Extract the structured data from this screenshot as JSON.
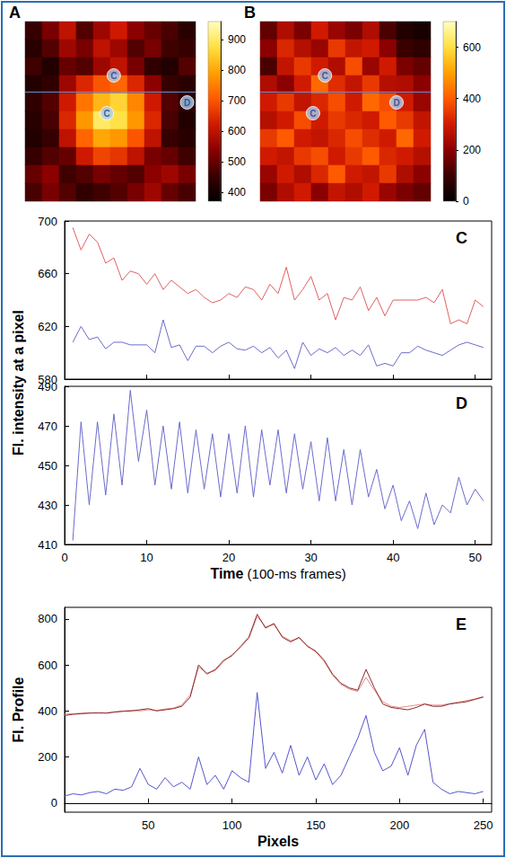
{
  "chart_data": [
    {
      "type": "heatmap",
      "panel": "A",
      "cells": [
        [
          450,
          520,
          600,
          480,
          560,
          620,
          540,
          500,
          470,
          430
        ],
        [
          430,
          480,
          560,
          520,
          600,
          560,
          480,
          520,
          460,
          450
        ],
        [
          460,
          420,
          500,
          480,
          560,
          600,
          520,
          440,
          420,
          480
        ],
        [
          420,
          440,
          560,
          640,
          700,
          720,
          640,
          540,
          450,
          430
        ],
        [
          440,
          480,
          620,
          740,
          820,
          860,
          760,
          620,
          480,
          440
        ],
        [
          430,
          470,
          640,
          780,
          900,
          880,
          780,
          640,
          470,
          420
        ],
        [
          420,
          450,
          600,
          720,
          800,
          780,
          700,
          600,
          450,
          430
        ],
        [
          450,
          480,
          500,
          620,
          680,
          660,
          600,
          520,
          500,
          460
        ],
        [
          500,
          540,
          460,
          480,
          520,
          500,
          480,
          540,
          560,
          520
        ],
        [
          470,
          520,
          480,
          440,
          460,
          480,
          520,
          560,
          500,
          470
        ]
      ],
      "colorbar": {
        "range": [
          370,
          960
        ],
        "ticks": [
          400,
          500,
          600,
          700,
          800,
          900
        ]
      },
      "hline_y": 3.9,
      "markers": [
        {
          "label": "C",
          "x": 5.2,
          "y": 3.0
        },
        {
          "label": "C",
          "x": 4.8,
          "y": 5.1
        },
        {
          "label": "D",
          "x": 9.5,
          "y": 4.5
        }
      ]
    },
    {
      "type": "heatmap",
      "panel": "B",
      "cells": [
        [
          150,
          250,
          180,
          300,
          220,
          180,
          250,
          120,
          60,
          40
        ],
        [
          200,
          320,
          260,
          220,
          350,
          280,
          300,
          200,
          100,
          80
        ],
        [
          120,
          280,
          350,
          300,
          250,
          380,
          220,
          300,
          180,
          150
        ],
        [
          250,
          200,
          300,
          420,
          330,
          280,
          350,
          260,
          250,
          200
        ],
        [
          300,
          350,
          280,
          320,
          380,
          300,
          420,
          380,
          300,
          220
        ],
        [
          260,
          300,
          380,
          300,
          350,
          320,
          300,
          400,
          350,
          280
        ],
        [
          350,
          400,
          300,
          280,
          320,
          380,
          330,
          300,
          420,
          300
        ],
        [
          300,
          280,
          350,
          380,
          300,
          350,
          400,
          320,
          300,
          260
        ],
        [
          220,
          300,
          250,
          320,
          400,
          300,
          280,
          350,
          250,
          200
        ],
        [
          180,
          250,
          300,
          200,
          280,
          250,
          300,
          220,
          180,
          150
        ]
      ],
      "colorbar": {
        "range": [
          0,
          700
        ],
        "ticks": [
          0,
          200,
          400,
          600
        ]
      },
      "hline_y": 3.9,
      "markers": [
        {
          "label": "C",
          "x": 3.8,
          "y": 3.0
        },
        {
          "label": "C",
          "x": 3.1,
          "y": 5.1
        },
        {
          "label": "D",
          "x": 8.0,
          "y": 4.5
        }
      ]
    },
    {
      "type": "line",
      "panel": "C",
      "y_label": "Fl. intensity at a pixel",
      "x": [
        1,
        2,
        3,
        4,
        5,
        6,
        7,
        8,
        9,
        10,
        11,
        12,
        13,
        14,
        15,
        16,
        17,
        18,
        19,
        20,
        21,
        22,
        23,
        24,
        25,
        26,
        27,
        28,
        29,
        30,
        31,
        32,
        33,
        34,
        35,
        36,
        37,
        38,
        39,
        40,
        41,
        42,
        43,
        44,
        45,
        46,
        47,
        48,
        49,
        50,
        51
      ],
      "series": [
        {
          "color": "#e06060",
          "values": [
            695,
            678,
            690,
            684,
            668,
            672,
            655,
            662,
            660,
            652,
            660,
            648,
            655,
            650,
            645,
            648,
            642,
            638,
            640,
            645,
            642,
            650,
            648,
            640,
            652,
            645,
            665,
            640,
            648,
            658,
            640,
            645,
            625,
            642,
            640,
            650,
            632,
            642,
            628,
            640,
            640,
            640,
            640,
            642,
            638,
            648,
            622,
            625,
            622,
            640,
            635
          ]
        },
        {
          "color": "#6b6bcc",
          "values": [
            608,
            620,
            610,
            612,
            603,
            608,
            608,
            606,
            606,
            606,
            600,
            625,
            604,
            606,
            594,
            605,
            605,
            600,
            605,
            608,
            603,
            602,
            605,
            600,
            604,
            596,
            602,
            588,
            608,
            598,
            603,
            600,
            604,
            598,
            602,
            598,
            606,
            590,
            592,
            590,
            600,
            600,
            605,
            602,
            600,
            598,
            602,
            606,
            608,
            606,
            604
          ]
        }
      ],
      "xlim": [
        0,
        52
      ],
      "xticks": [
        0,
        10,
        20,
        30,
        40,
        50
      ],
      "ylim": [
        580,
        700
      ],
      "yticks": [
        580,
        620,
        660,
        700
      ],
      "tick_labels": "y",
      "grid": false
    },
    {
      "type": "line",
      "panel": "D",
      "x_label": "Time (100-ms frames)",
      "x": [
        1,
        2,
        3,
        4,
        5,
        6,
        7,
        8,
        9,
        10,
        11,
        12,
        13,
        14,
        15,
        16,
        17,
        18,
        19,
        20,
        21,
        22,
        23,
        24,
        25,
        26,
        27,
        28,
        29,
        30,
        31,
        32,
        33,
        34,
        35,
        36,
        37,
        38,
        39,
        40,
        41,
        42,
        43,
        44,
        45,
        46,
        47,
        48,
        49,
        50,
        51
      ],
      "series": [
        {
          "color": "#6b6bcc",
          "values": [
            412,
            472,
            430,
            472,
            435,
            476,
            440,
            488,
            452,
            478,
            440,
            470,
            438,
            472,
            436,
            468,
            438,
            466,
            434,
            466,
            436,
            470,
            434,
            468,
            440,
            468,
            436,
            466,
            438,
            462,
            432,
            464,
            432,
            458,
            430,
            458,
            434,
            448,
            428,
            440,
            422,
            432,
            418,
            436,
            420,
            430,
            426,
            444,
            430,
            438,
            432
          ]
        }
      ],
      "xlim": [
        0,
        52
      ],
      "xticks": [
        0,
        10,
        20,
        30,
        40,
        50
      ],
      "ylim": [
        410,
        490
      ],
      "yticks": [
        410,
        430,
        450,
        470,
        490
      ],
      "grid": false
    },
    {
      "type": "line",
      "panel": "E",
      "x_label": "Pixels",
      "y_label": "Fl. Profile",
      "x": [
        0,
        5,
        10,
        15,
        20,
        25,
        30,
        35,
        40,
        45,
        50,
        55,
        60,
        65,
        70,
        75,
        80,
        85,
        90,
        95,
        100,
        105,
        110,
        115,
        120,
        125,
        130,
        135,
        140,
        145,
        150,
        155,
        160,
        165,
        170,
        175,
        180,
        185,
        190,
        195,
        200,
        205,
        210,
        215,
        220,
        225,
        230,
        235,
        240,
        245,
        250
      ],
      "series": [
        {
          "color": "#e08a8a",
          "values": [
            385,
            388,
            390,
            392,
            390,
            392,
            396,
            400,
            402,
            400,
            405,
            402,
            408,
            412,
            425,
            470,
            590,
            565,
            575,
            615,
            645,
            675,
            715,
            810,
            765,
            775,
            725,
            705,
            715,
            685,
            655,
            615,
            555,
            515,
            495,
            485,
            545,
            490,
            440,
            420,
            415,
            420,
            425,
            430,
            425,
            425,
            432,
            438,
            445,
            452,
            462
          ]
        },
        {
          "color": "#8b2a2a",
          "values": [
            380,
            385,
            388,
            390,
            392,
            390,
            395,
            398,
            400,
            405,
            410,
            400,
            405,
            410,
            420,
            460,
            600,
            560,
            580,
            620,
            640,
            680,
            720,
            820,
            760,
            780,
            720,
            700,
            720,
            680,
            660,
            620,
            560,
            520,
            500,
            490,
            580,
            500,
            430,
            415,
            410,
            405,
            415,
            430,
            420,
            420,
            430,
            435,
            440,
            450,
            460
          ]
        },
        {
          "color": "#5555cc",
          "values": [
            30,
            40,
            35,
            45,
            50,
            40,
            60,
            55,
            70,
            150,
            80,
            60,
            110,
            70,
            90,
            60,
            200,
            80,
            120,
            60,
            140,
            110,
            90,
            480,
            150,
            220,
            130,
            250,
            120,
            200,
            100,
            170,
            80,
            120,
            200,
            280,
            380,
            220,
            140,
            160,
            240,
            120,
            250,
            320,
            90,
            60,
            40,
            50,
            45,
            40,
            50
          ]
        }
      ],
      "xlim": [
        0,
        255
      ],
      "xticks": [
        50,
        100,
        150,
        200,
        250
      ],
      "ylim": [
        -40,
        850
      ],
      "yticks": [
        0,
        200,
        400,
        600,
        800
      ],
      "grid": false
    }
  ]
}
